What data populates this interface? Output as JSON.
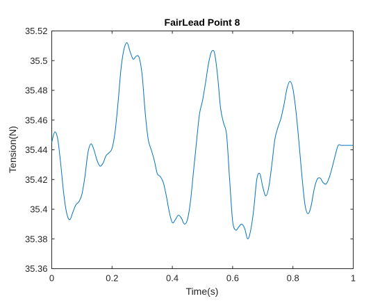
{
  "chart_data": {
    "type": "line",
    "title": "FairLead Point 8",
    "xlabel": "Time(s)",
    "ylabel": "Tension(N)",
    "xlim": [
      0,
      1
    ],
    "ylim": [
      35.36,
      35.52
    ],
    "x_ticks": [
      "0",
      "0.2",
      "0.4",
      "0.6",
      "0.8",
      "1"
    ],
    "y_ticks": [
      "35.36",
      "35.38",
      "35.4",
      "35.42",
      "35.44",
      "35.46",
      "35.48",
      "35.5",
      "35.52"
    ],
    "grid": false,
    "line_color": "#0072bd",
    "series": [
      {
        "x": [
          0,
          0.01,
          0.02,
          0.03,
          0.04,
          0.05,
          0.06,
          0.07,
          0.08,
          0.09,
          0.1,
          0.11,
          0.12,
          0.13,
          0.14,
          0.15,
          0.16,
          0.17,
          0.18,
          0.19,
          0.2,
          0.21,
          0.22,
          0.23,
          0.24,
          0.25,
          0.26,
          0.27,
          0.28,
          0.29,
          0.3,
          0.31,
          0.32,
          0.33,
          0.34,
          0.35,
          0.36,
          0.37,
          0.38,
          0.39,
          0.4,
          0.41,
          0.42,
          0.43,
          0.44,
          0.45,
          0.46,
          0.47,
          0.48,
          0.49,
          0.5,
          0.51,
          0.52,
          0.53,
          0.54,
          0.55,
          0.56,
          0.57,
          0.58,
          0.59,
          0.6,
          0.61,
          0.62,
          0.63,
          0.64,
          0.65,
          0.66,
          0.67,
          0.68,
          0.69,
          0.7,
          0.71,
          0.72,
          0.73,
          0.74,
          0.75,
          0.76,
          0.77,
          0.78,
          0.79,
          0.8,
          0.81,
          0.82,
          0.83,
          0.84,
          0.85,
          0.86,
          0.87,
          0.88,
          0.89,
          0.9,
          0.91,
          0.92,
          0.93,
          0.94,
          0.95,
          0.96,
          0.97,
          0.98,
          0.99,
          1.0
        ],
        "values": [
          35.445,
          35.452,
          35.447,
          35.43,
          35.41,
          35.397,
          35.393,
          35.398,
          35.403,
          35.405,
          35.41,
          35.422,
          35.438,
          35.444,
          35.44,
          35.433,
          35.429,
          35.431,
          35.436,
          35.438,
          35.441,
          35.452,
          35.472,
          35.495,
          35.508,
          35.512,
          35.506,
          35.501,
          35.503,
          35.502,
          35.49,
          35.465,
          35.447,
          35.44,
          35.433,
          35.424,
          35.422,
          35.418,
          35.409,
          35.398,
          35.391,
          35.393,
          35.396,
          35.394,
          35.39,
          35.393,
          35.405,
          35.425,
          35.445,
          35.464,
          35.473,
          35.485,
          35.498,
          35.506,
          35.505,
          35.49,
          35.468,
          35.458,
          35.45,
          35.42,
          35.392,
          35.386,
          35.388,
          35.39,
          35.387,
          35.38,
          35.386,
          35.4,
          35.42,
          35.424,
          35.415,
          35.409,
          35.415,
          35.43,
          35.447,
          35.455,
          35.461,
          35.47,
          35.481,
          35.486,
          35.481,
          35.466,
          35.445,
          35.422,
          35.403,
          35.397,
          35.402,
          35.413,
          35.42,
          35.421,
          35.418,
          35.417,
          35.421,
          35.428,
          35.436,
          35.443,
          35.443,
          35.443,
          35.443,
          35.443,
          35.443
        ]
      }
    ]
  }
}
